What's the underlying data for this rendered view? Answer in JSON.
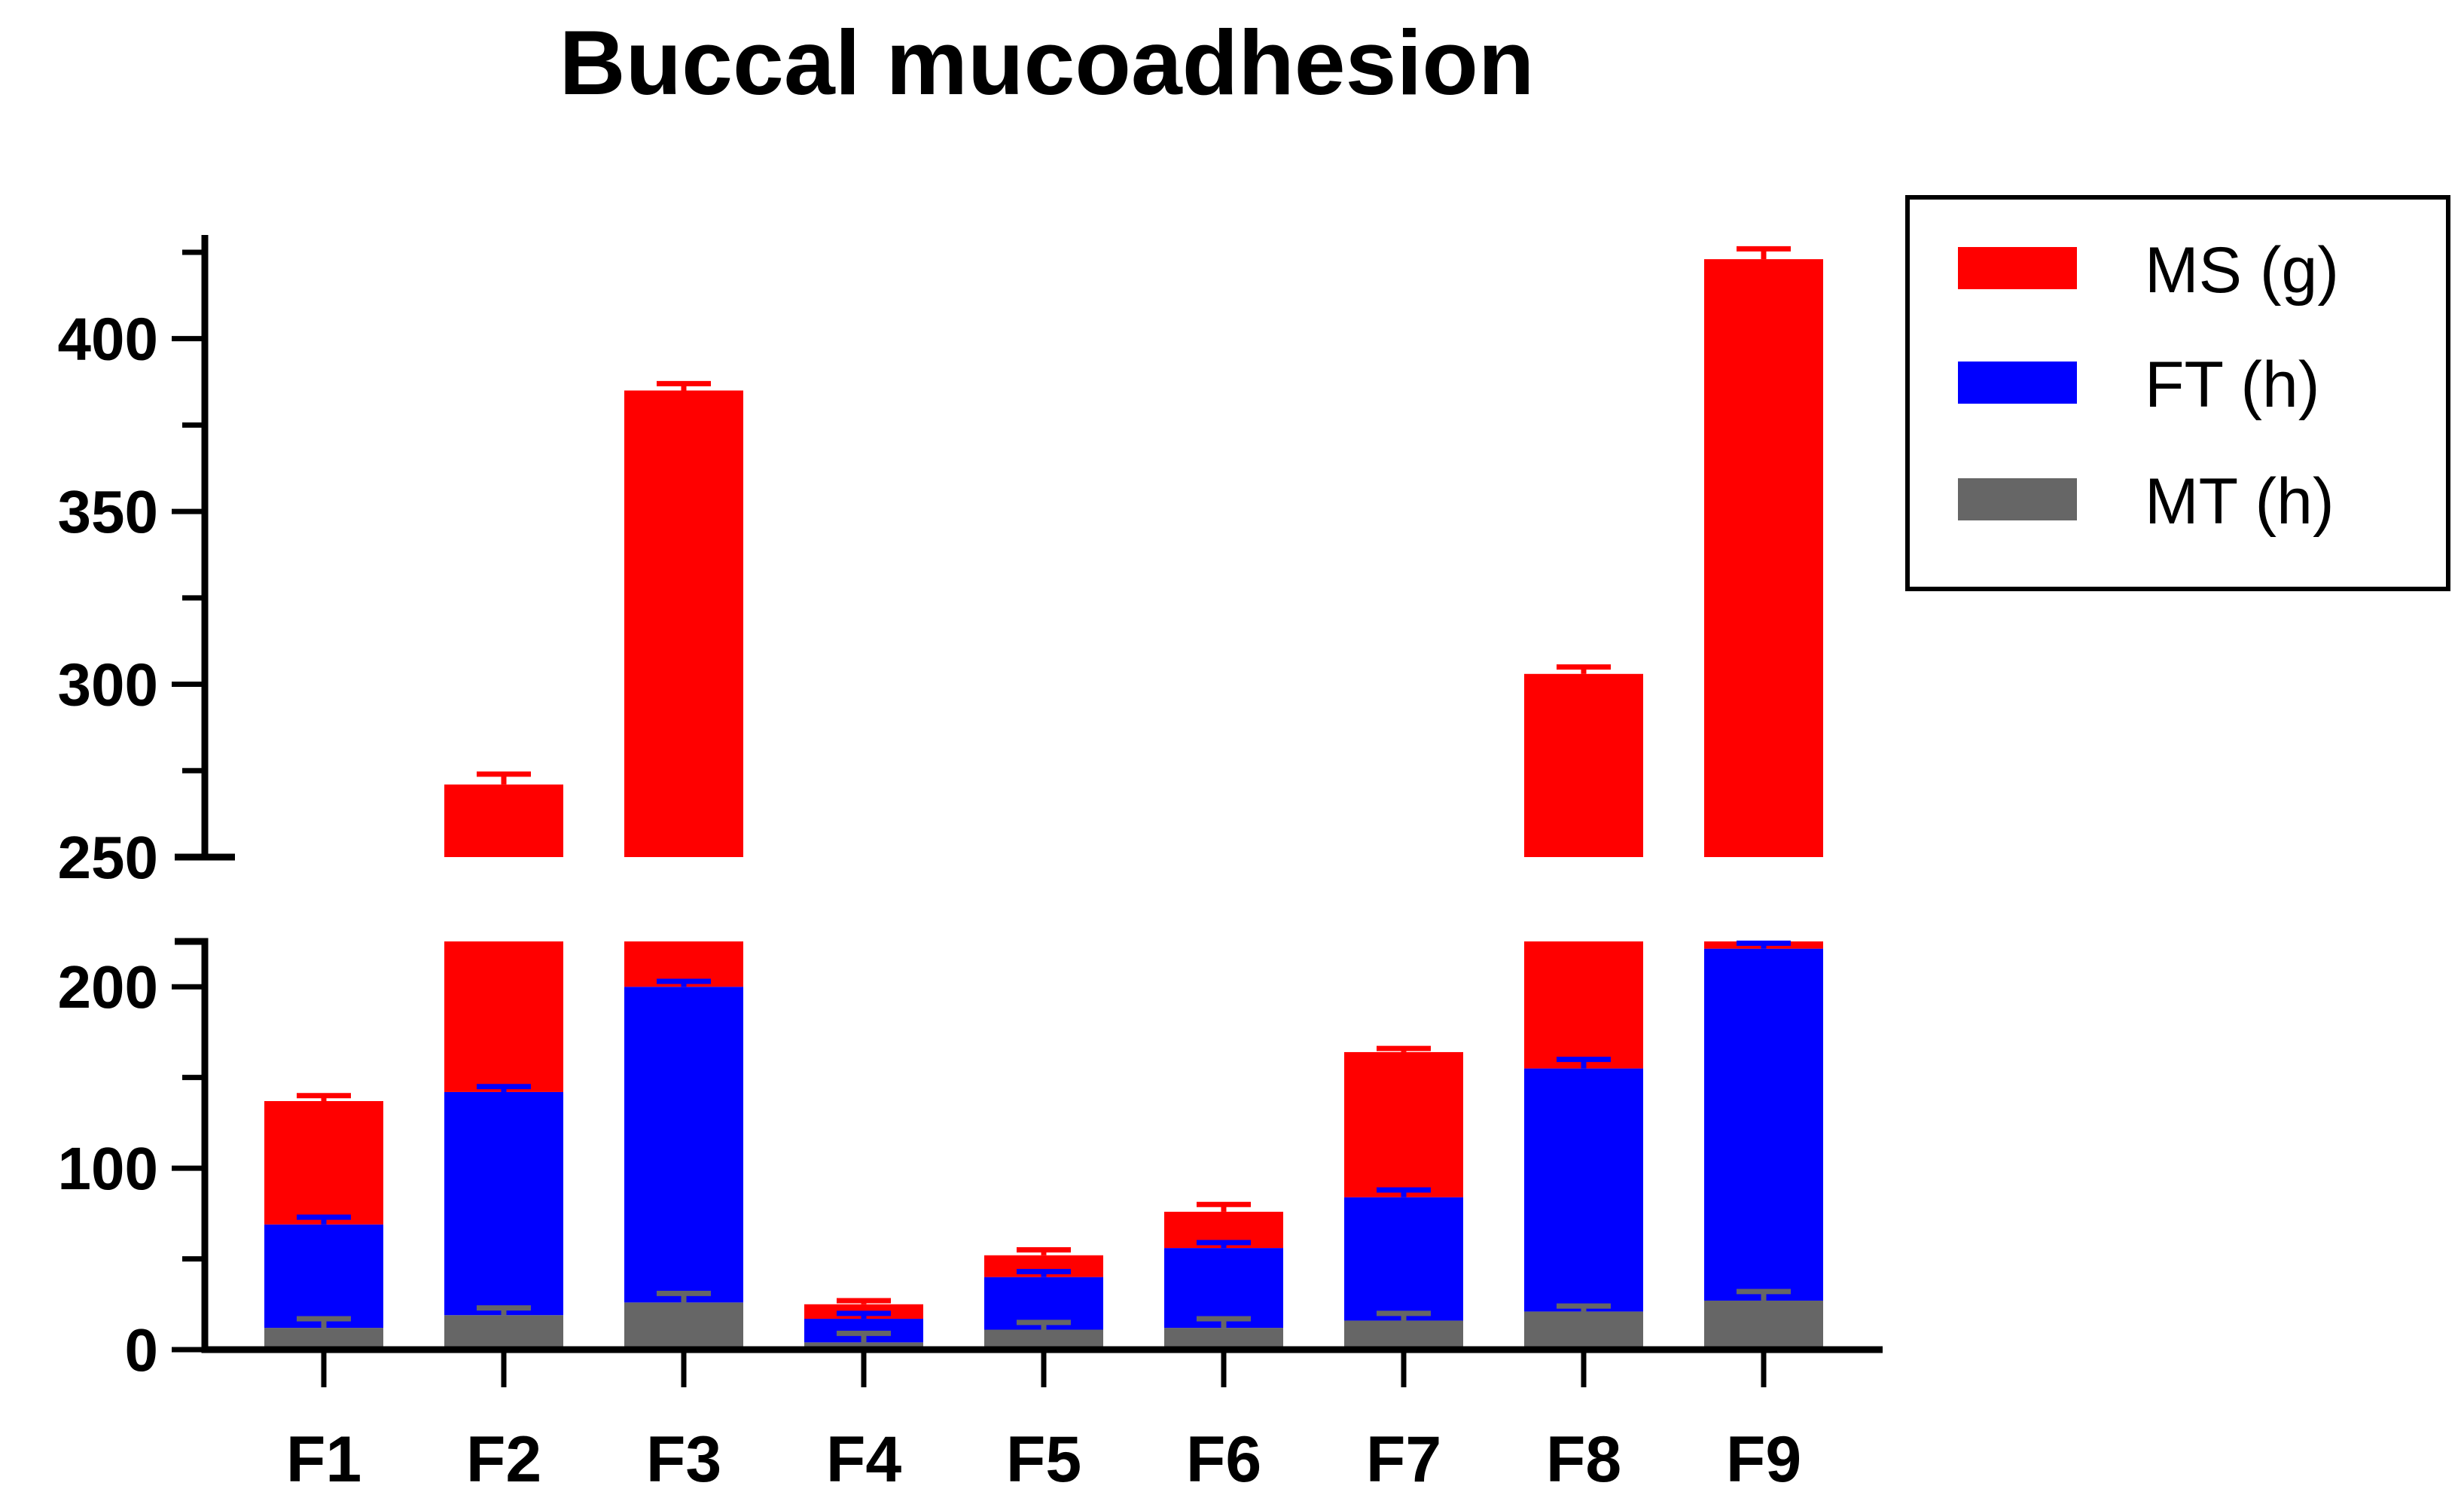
{
  "chart_data": {
    "type": "bar",
    "stacked": true,
    "title": "Buccal mucoadhesion",
    "xlabel": "",
    "ylabel": "",
    "categories": [
      "F1",
      "F2",
      "F3",
      "F4",
      "F5",
      "F6",
      "F7",
      "F8",
      "F9"
    ],
    "series": [
      {
        "name": "MT (h)",
        "color": "#666666",
        "values": [
          12,
          19,
          26,
          4,
          11,
          12,
          16,
          21,
          27
        ],
        "errors": [
          5,
          4,
          5,
          5,
          4,
          5,
          4,
          3,
          5
        ]
      },
      {
        "name": "FT (h)",
        "color": "#0000ff",
        "values": [
          57,
          123,
          174,
          13,
          29,
          44,
          68,
          134,
          194
        ],
        "errors": [
          4,
          3,
          3,
          3,
          3,
          3,
          4,
          5,
          3
        ]
      },
      {
        "name": "MS (g)",
        "color": "#ff0000",
        "values": [
          68,
          129,
          185,
          8,
          12,
          20,
          80,
          148,
          202
        ],
        "errors": [
          3,
          3,
          2,
          2,
          3,
          4,
          2,
          2,
          3
        ]
      }
    ],
    "totals": [
      137,
      271,
      385,
      25,
      52,
      76,
      164,
      303,
      423
    ],
    "y_axis": {
      "broken": true,
      "lower_segment": {
        "ylim": [
          0,
          225
        ],
        "major_ticks": [
          0,
          100,
          200
        ],
        "minor_step": 50
      },
      "upper_segment": {
        "ylim": [
          250,
          430
        ],
        "major_ticks": [
          250,
          300,
          350,
          400
        ],
        "minor_step": 25
      }
    },
    "legend": {
      "placement": "right",
      "entries": [
        "MS (g)",
        "FT (h)",
        "MT (h)"
      ]
    },
    "grid": false
  }
}
